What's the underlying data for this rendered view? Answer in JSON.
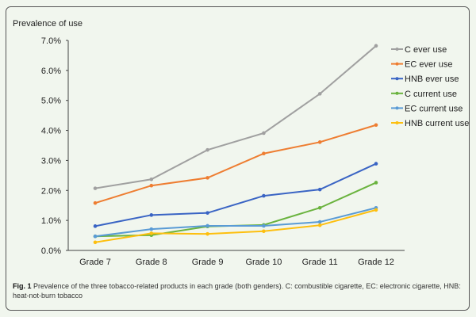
{
  "chart_data": {
    "type": "line",
    "title": "",
    "xlabel": "",
    "ylabel": "Prevalence of use",
    "categories": [
      "Grade 7",
      "Grade 8",
      "Grade 9",
      "Grade 10",
      "Grade 11",
      "Grade 12"
    ],
    "ylim": [
      0,
      7
    ],
    "yticks": [
      0,
      1,
      2,
      3,
      4,
      5,
      6,
      7
    ],
    "ytick_labels": [
      "0.0%",
      "1.0%",
      "2.0%",
      "3.0%",
      "4.0%",
      "5.0%",
      "6.0%",
      "7.0%"
    ],
    "grid": false,
    "legend_position": "top-right",
    "series": [
      {
        "name": "C ever use",
        "color": "#a0a0a0",
        "values": [
          2.07,
          2.37,
          3.35,
          3.91,
          5.22,
          6.82
        ]
      },
      {
        "name": "EC ever use",
        "color": "#ee7d31",
        "values": [
          1.58,
          2.16,
          2.42,
          3.23,
          3.61,
          4.18
        ]
      },
      {
        "name": "HNB ever use",
        "color": "#3a64c4",
        "values": [
          0.81,
          1.18,
          1.25,
          1.82,
          2.03,
          2.89
        ]
      },
      {
        "name": "C current use",
        "color": "#6ab33e",
        "values": [
          0.47,
          0.51,
          0.8,
          0.85,
          1.42,
          2.26
        ]
      },
      {
        "name": "EC current use",
        "color": "#5a9bd5",
        "values": [
          0.47,
          0.71,
          0.82,
          0.82,
          0.95,
          1.42
        ]
      },
      {
        "name": "HNB current use",
        "color": "#fdbf0f",
        "values": [
          0.27,
          0.57,
          0.55,
          0.64,
          0.84,
          1.35
        ]
      }
    ]
  },
  "caption": {
    "label": "Fig. 1",
    "text": "Prevalence of the three tobacco-related products in each grade (both genders). C: combustible cigarette, EC: electronic cigarette, HNB: heat-not-burn tobacco"
  }
}
